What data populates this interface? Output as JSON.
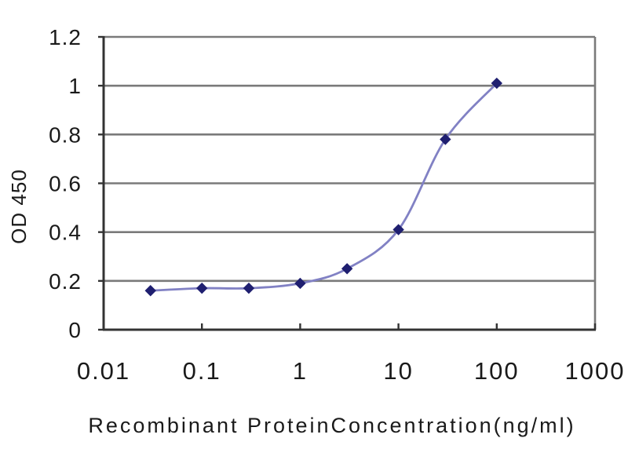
{
  "chart_data": {
    "type": "line",
    "title": "",
    "xlabel": "Recombinant ProteinConcentration(ng/ml)",
    "ylabel": "OD 450",
    "x_scale": "log",
    "xlim": [
      0.01,
      1000
    ],
    "ylim": [
      0,
      1.2
    ],
    "grid": "horizontal",
    "legend": "none",
    "x_ticks": [
      "0.01",
      "0.1",
      "1",
      "10",
      "100",
      "1000"
    ],
    "x_tick_values": [
      0.01,
      0.1,
      1,
      10,
      100,
      1000
    ],
    "y_ticks": [
      "0",
      "0.2",
      "0.4",
      "0.6",
      "0.8",
      "1",
      "1.2"
    ],
    "y_tick_values": [
      0,
      0.2,
      0.4,
      0.6,
      0.8,
      1,
      1.2
    ],
    "series": [
      {
        "name": "OD 450",
        "marker": "diamond",
        "smoothed": true,
        "x": [
          0.03,
          0.1,
          0.3,
          1,
          3,
          10,
          30,
          100
        ],
        "y": [
          0.16,
          0.17,
          0.17,
          0.19,
          0.25,
          0.41,
          0.78,
          1.01
        ]
      }
    ],
    "colors": {
      "line": "#8181c4",
      "marker": "#1f1f70",
      "grid": "#7a7a7a",
      "axis": "#333333",
      "text": "#1a1a1a",
      "background": "#ffffff"
    }
  }
}
